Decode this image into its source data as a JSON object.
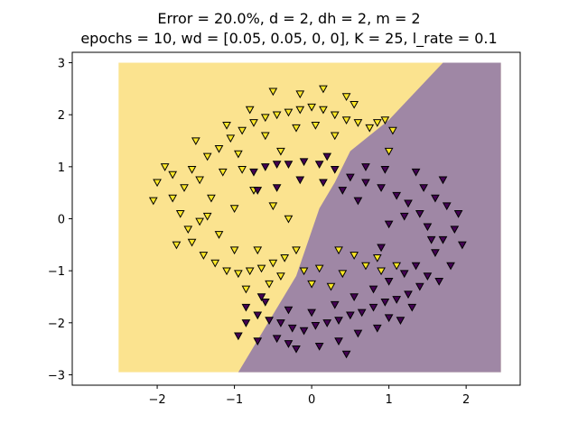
{
  "chart_data": {
    "type": "scatter",
    "title_lines": [
      "Error = 20.0%, d = 2, dh = 2, m = 2",
      "epochs = 10, wd = [0.05, 0.05, 0, 0], K = 25, l_rate = 0.1"
    ],
    "xlabel": "",
    "ylabel": "",
    "xlim": [
      -3.1,
      2.7
    ],
    "ylim": [
      -3.2,
      3.2
    ],
    "x_ticks": [
      -2,
      -1,
      0,
      1,
      2
    ],
    "y_ticks": [
      -3,
      -2,
      -1,
      0,
      1,
      2,
      3
    ],
    "x_tick_labels": [
      "−2",
      "−1",
      "0",
      "1",
      "2"
    ],
    "y_tick_labels": [
      "−3",
      "−2",
      "−1",
      "0",
      "1",
      "2",
      "3"
    ],
    "grid": false,
    "marker": "triangle-down",
    "colors": {
      "class_yellow": "#fde725",
      "class_purple": "#440154",
      "region_yellow": "#fbe38f",
      "region_purple": "#9f87a5",
      "marker_edge": "#000000"
    },
    "decision_region": {
      "x_range": [
        -2.5,
        2.45
      ],
      "y_range": [
        -2.95,
        3.0
      ],
      "boundary": [
        [
          -0.95,
          -2.95
        ],
        [
          -0.2,
          -1.1
        ],
        [
          0.1,
          0.2
        ],
        [
          0.3,
          0.7
        ],
        [
          0.5,
          1.3
        ],
        [
          1.0,
          1.9
        ],
        [
          1.7,
          3.0
        ]
      ]
    },
    "series": [
      {
        "color": "#fde725",
        "points": [
          [
            -1.55,
            0.95
          ],
          [
            -1.45,
            0.75
          ],
          [
            -1.35,
            1.2
          ],
          [
            -1.2,
            1.35
          ],
          [
            -1.05,
            1.55
          ],
          [
            -0.9,
            1.7
          ],
          [
            -0.75,
            1.85
          ],
          [
            -0.6,
            1.95
          ],
          [
            -0.45,
            2.0
          ],
          [
            -0.3,
            2.05
          ],
          [
            -0.15,
            2.1
          ],
          [
            0.0,
            2.15
          ],
          [
            0.15,
            2.1
          ],
          [
            0.3,
            2.0
          ],
          [
            0.45,
            1.9
          ],
          [
            0.6,
            1.85
          ],
          [
            0.75,
            1.75
          ],
          [
            0.85,
            1.85
          ],
          [
            0.95,
            1.9
          ],
          [
            1.05,
            1.7
          ],
          [
            -1.9,
            1.0
          ],
          [
            -2.0,
            0.7
          ],
          [
            -1.8,
            0.4
          ],
          [
            -1.7,
            0.1
          ],
          [
            -1.6,
            -0.2
          ],
          [
            -1.55,
            -0.45
          ],
          [
            -1.4,
            -0.7
          ],
          [
            -1.25,
            -0.85
          ],
          [
            -1.1,
            -1.0
          ],
          [
            -0.95,
            -1.05
          ],
          [
            -0.8,
            -1.0
          ],
          [
            -0.65,
            -0.95
          ],
          [
            -0.5,
            -0.85
          ],
          [
            -0.35,
            -0.75
          ],
          [
            -0.2,
            -0.6
          ],
          [
            -0.4,
            -1.1
          ],
          [
            -0.1,
            -1.0
          ],
          [
            0.1,
            -0.95
          ],
          [
            0.25,
            -1.3
          ],
          [
            0.4,
            -1.05
          ],
          [
            0.55,
            -0.7
          ],
          [
            0.7,
            -0.9
          ],
          [
            0.85,
            -0.75
          ],
          [
            0.9,
            -1.0
          ],
          [
            -0.3,
            0.0
          ],
          [
            -0.5,
            0.25
          ],
          [
            -0.75,
            0.55
          ],
          [
            -1.0,
            0.2
          ],
          [
            -1.15,
            0.9
          ],
          [
            -1.3,
            0.4
          ],
          [
            -1.45,
            -0.05
          ],
          [
            -1.65,
            0.6
          ],
          [
            -2.05,
            0.35
          ],
          [
            -1.75,
            -0.5
          ],
          [
            -1.2,
            -0.3
          ],
          [
            -1.5,
            1.5
          ],
          [
            -1.1,
            1.8
          ],
          [
            -0.8,
            2.1
          ],
          [
            -0.5,
            2.45
          ],
          [
            -0.15,
            2.4
          ],
          [
            0.15,
            2.5
          ],
          [
            0.45,
            2.35
          ],
          [
            -0.2,
            1.75
          ],
          [
            0.05,
            1.8
          ],
          [
            0.3,
            1.6
          ],
          [
            -0.6,
            1.6
          ],
          [
            -0.95,
            1.25
          ],
          [
            -0.4,
            1.3
          ],
          [
            -1.35,
            0.05
          ],
          [
            -1.0,
            -0.6
          ],
          [
            -0.7,
            -0.6
          ],
          [
            -0.85,
            -1.35
          ],
          [
            -0.55,
            -1.25
          ],
          [
            0.0,
            -1.25
          ],
          [
            0.35,
            -0.6
          ],
          [
            1.1,
            -0.9
          ],
          [
            1.0,
            1.3
          ],
          [
            0.55,
            2.2
          ],
          [
            -1.8,
            0.85
          ],
          [
            -0.9,
            0.95
          ]
        ]
      },
      {
        "color": "#440154",
        "points": [
          [
            -0.75,
            0.9
          ],
          [
            -0.6,
            1.0
          ],
          [
            -0.45,
            1.05
          ],
          [
            -0.3,
            1.05
          ],
          [
            -0.1,
            1.1
          ],
          [
            0.1,
            1.05
          ],
          [
            0.3,
            0.95
          ],
          [
            0.5,
            0.8
          ],
          [
            0.7,
            0.7
          ],
          [
            0.9,
            0.6
          ],
          [
            1.1,
            0.45
          ],
          [
            1.25,
            0.3
          ],
          [
            1.4,
            0.1
          ],
          [
            1.5,
            -0.15
          ],
          [
            1.55,
            -0.4
          ],
          [
            1.6,
            -0.65
          ],
          [
            1.7,
            -0.4
          ],
          [
            1.85,
            -0.2
          ],
          [
            1.75,
            0.25
          ],
          [
            1.95,
            -0.5
          ],
          [
            1.45,
            0.6
          ],
          [
            1.7,
            0.75
          ],
          [
            -0.85,
            -1.7
          ],
          [
            -0.7,
            -1.85
          ],
          [
            -0.55,
            -1.95
          ],
          [
            -0.4,
            -2.0
          ],
          [
            -0.25,
            -2.1
          ],
          [
            -0.1,
            -2.15
          ],
          [
            0.05,
            -2.05
          ],
          [
            0.2,
            -2.0
          ],
          [
            0.35,
            -1.95
          ],
          [
            0.5,
            -1.85
          ],
          [
            0.65,
            -1.8
          ],
          [
            0.8,
            -1.7
          ],
          [
            0.95,
            -1.6
          ],
          [
            1.1,
            -1.55
          ],
          [
            1.25,
            -1.45
          ],
          [
            1.4,
            -1.3
          ],
          [
            1.5,
            -1.1
          ],
          [
            1.35,
            -0.9
          ],
          [
            -0.95,
            -2.25
          ],
          [
            -0.7,
            -2.35
          ],
          [
            -0.45,
            -2.3
          ],
          [
            -0.2,
            -2.5
          ],
          [
            0.1,
            -2.45
          ],
          [
            0.35,
            -2.35
          ],
          [
            0.6,
            -2.2
          ],
          [
            0.85,
            -2.1
          ],
          [
            1.15,
            -1.95
          ],
          [
            -0.6,
            -1.6
          ],
          [
            -0.3,
            -1.75
          ],
          [
            0.0,
            -1.8
          ],
          [
            0.3,
            -1.65
          ],
          [
            0.55,
            -1.5
          ],
          [
            0.8,
            -1.35
          ],
          [
            1.0,
            -1.2
          ],
          [
            1.2,
            -1.05
          ],
          [
            0.9,
            -0.55
          ],
          [
            1.0,
            -0.1
          ],
          [
            1.2,
            0.05
          ],
          [
            0.6,
            0.35
          ],
          [
            0.4,
            0.55
          ],
          [
            0.15,
            0.7
          ],
          [
            -0.15,
            0.75
          ],
          [
            -0.45,
            0.6
          ],
          [
            -0.7,
            0.55
          ],
          [
            1.9,
            0.1
          ],
          [
            1.8,
            -0.9
          ],
          [
            1.65,
            -1.2
          ],
          [
            1.35,
            0.9
          ],
          [
            0.95,
            0.95
          ],
          [
            0.2,
            1.2
          ],
          [
            -0.85,
            -2.0
          ],
          [
            1.0,
            -1.9
          ],
          [
            0.45,
            -2.6
          ],
          [
            -0.3,
            -2.4
          ],
          [
            1.6,
            0.4
          ],
          [
            1.3,
            -1.7
          ],
          [
            -0.65,
            -1.5
          ],
          [
            0.7,
            1.0
          ]
        ]
      }
    ]
  }
}
